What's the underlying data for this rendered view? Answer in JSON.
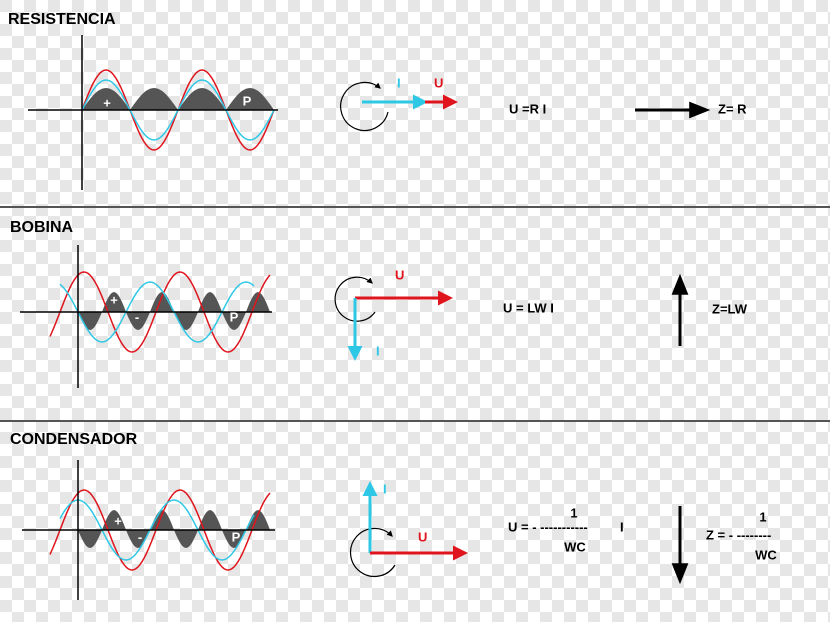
{
  "sections": [
    {
      "title": "RESISTENCIA",
      "wave_labels": [
        "+",
        "P"
      ],
      "current": "I",
      "voltage": "U",
      "formula": "U =R I",
      "impedance": "Z= R"
    },
    {
      "title": "BOBINA",
      "wave_labels": [
        "+",
        "-",
        "P"
      ],
      "current": "I",
      "voltage": "U",
      "formula": "U = LW I",
      "impedance": "Z=LW"
    },
    {
      "title": "CONDENSADOR",
      "wave_labels": [
        "+",
        "-",
        "P"
      ],
      "current": "I",
      "voltage": "U",
      "formula": {
        "left": "U = - -----------",
        "right": "I",
        "numerator": "1",
        "denominator": "WC"
      },
      "impedance": {
        "left": "Z = - --------",
        "numerator": "1",
        "denominator": "WC"
      }
    }
  ]
}
